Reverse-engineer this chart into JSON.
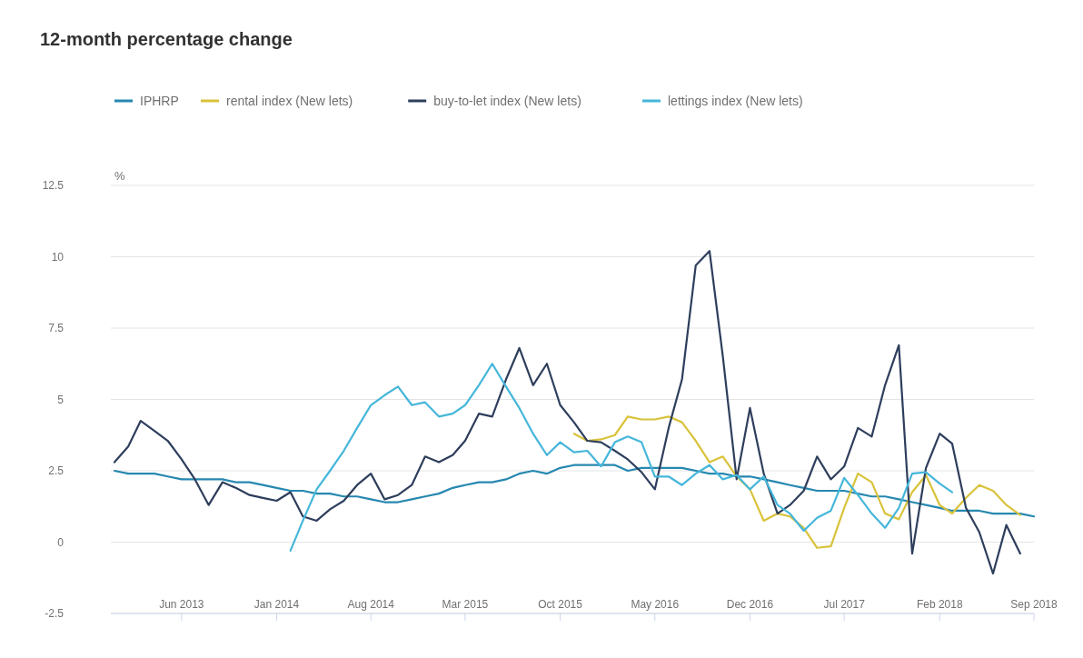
{
  "chart_data": {
    "type": "line",
    "title": "12-month percentage change",
    "ylabel": "%",
    "x": [
      "2013-01",
      "2013-02",
      "2013-03",
      "2013-04",
      "2013-05",
      "2013-06",
      "2013-07",
      "2013-08",
      "2013-09",
      "2013-10",
      "2013-11",
      "2013-12",
      "2014-01",
      "2014-02",
      "2014-03",
      "2014-04",
      "2014-05",
      "2014-06",
      "2014-07",
      "2014-08",
      "2014-09",
      "2014-10",
      "2014-11",
      "2014-12",
      "2015-01",
      "2015-02",
      "2015-03",
      "2015-04",
      "2015-05",
      "2015-06",
      "2015-07",
      "2015-08",
      "2015-09",
      "2015-10",
      "2015-11",
      "2015-12",
      "2016-01",
      "2016-02",
      "2016-03",
      "2016-04",
      "2016-05",
      "2016-06",
      "2016-07",
      "2016-08",
      "2016-09",
      "2016-10",
      "2016-11",
      "2016-12",
      "2017-01",
      "2017-02",
      "2017-03",
      "2017-04",
      "2017-05",
      "2017-06",
      "2017-07",
      "2017-08",
      "2017-09",
      "2017-10",
      "2017-11",
      "2017-12",
      "2018-01",
      "2018-02",
      "2018-03",
      "2018-04",
      "2018-05",
      "2018-06",
      "2018-07",
      "2018-08",
      "2018-09"
    ],
    "series": [
      {
        "name": "IPHRP",
        "color": "#2688b0",
        "values": [
          2.5,
          2.4,
          2.4,
          2.4,
          2.3,
          2.2,
          2.2,
          2.2,
          2.2,
          2.1,
          2.1,
          2.0,
          1.9,
          1.8,
          1.8,
          1.7,
          1.7,
          1.6,
          1.6,
          1.5,
          1.4,
          1.4,
          1.5,
          1.6,
          1.7,
          1.9,
          2.0,
          2.1,
          2.1,
          2.2,
          2.4,
          2.5,
          2.4,
          2.6,
          2.7,
          2.7,
          2.7,
          2.7,
          2.5,
          2.6,
          2.6,
          2.6,
          2.6,
          2.5,
          2.4,
          2.4,
          2.3,
          2.3,
          2.2,
          2.1,
          2.0,
          1.9,
          1.8,
          1.8,
          1.8,
          1.7,
          1.6,
          1.6,
          1.5,
          1.4,
          1.3,
          1.2,
          1.1,
          1.1,
          1.1,
          1.0,
          1.0,
          1.0,
          0.9
        ]
      },
      {
        "name": "rental index (New lets)",
        "color": "#d9c23a",
        "values": [
          null,
          null,
          null,
          null,
          null,
          null,
          null,
          null,
          null,
          null,
          null,
          null,
          null,
          null,
          null,
          null,
          null,
          null,
          null,
          null,
          null,
          null,
          null,
          null,
          null,
          null,
          null,
          null,
          null,
          null,
          null,
          null,
          null,
          null,
          3.8,
          3.55,
          3.6,
          3.75,
          4.4,
          4.3,
          4.3,
          4.4,
          4.2,
          3.55,
          2.8,
          3.0,
          2.3,
          1.85,
          0.75,
          1.0,
          0.9,
          0.5,
          -0.2,
          -0.15,
          1.2,
          2.4,
          2.1,
          1.0,
          0.8,
          1.75,
          2.35,
          1.3,
          1.0,
          1.55,
          2.0,
          1.8,
          1.3,
          0.95,
          null
        ]
      },
      {
        "name": "buy-to-let index (New lets)",
        "color": "#2e3e5c",
        "values": [
          2.8,
          3.35,
          4.25,
          3.9,
          3.55,
          2.9,
          2.2,
          1.3,
          2.1,
          1.9,
          1.65,
          1.55,
          1.45,
          1.75,
          0.9,
          0.75,
          1.15,
          1.45,
          2.0,
          2.4,
          1.5,
          1.65,
          2.0,
          3.0,
          2.8,
          3.05,
          3.55,
          4.5,
          4.4,
          5.7,
          6.8,
          5.5,
          6.25,
          4.8,
          4.2,
          3.55,
          3.5,
          3.2,
          2.9,
          2.45,
          1.85,
          4.0,
          5.7,
          9.7,
          10.2,
          6.5,
          2.2,
          4.7,
          2.4,
          1.0,
          1.3,
          1.8,
          3.0,
          2.2,
          2.65,
          4.0,
          3.7,
          5.5,
          6.9,
          -0.4,
          2.6,
          3.8,
          3.45,
          1.2,
          0.35,
          -1.1,
          0.6,
          -0.4,
          null
        ]
      },
      {
        "name": "lettings index (New lets)",
        "color": "#45b6da",
        "values": [
          null,
          null,
          null,
          null,
          null,
          null,
          null,
          null,
          null,
          null,
          null,
          null,
          null,
          -0.3,
          0.75,
          1.85,
          2.5,
          3.2,
          4.0,
          4.8,
          5.15,
          5.45,
          4.8,
          4.9,
          4.4,
          4.5,
          4.8,
          5.5,
          6.25,
          5.45,
          4.7,
          3.8,
          3.05,
          3.5,
          3.15,
          3.2,
          2.65,
          3.5,
          3.7,
          3.5,
          2.3,
          2.3,
          2.0,
          2.4,
          2.7,
          2.2,
          2.35,
          1.85,
          2.3,
          1.3,
          1.0,
          0.4,
          0.85,
          1.1,
          2.25,
          1.65,
          1.0,
          0.5,
          1.2,
          2.4,
          2.45,
          2.05,
          1.75,
          null,
          null,
          null,
          null,
          null,
          null
        ]
      }
    ],
    "xlim": [
      "2013-01",
      "2018-09"
    ],
    "xticks": [
      {
        "value": "2013-06",
        "label": "Jun 2013"
      },
      {
        "value": "2014-01",
        "label": "Jan 2014"
      },
      {
        "value": "2014-08",
        "label": "Aug 2014"
      },
      {
        "value": "2015-03",
        "label": "Mar 2015"
      },
      {
        "value": "2015-10",
        "label": "Oct 2015"
      },
      {
        "value": "2016-05",
        "label": "May 2016"
      },
      {
        "value": "2016-12",
        "label": "Dec 2016"
      },
      {
        "value": "2017-07",
        "label": "Jul 2017"
      },
      {
        "value": "2018-02",
        "label": "Feb 2018"
      },
      {
        "value": "2018-09",
        "label": "Sep 2018"
      }
    ],
    "ylim": [
      -2.5,
      12.5
    ],
    "yticks": [
      -2.5,
      0,
      2.5,
      5,
      7.5,
      10,
      12.5
    ],
    "grid": "y",
    "legend": "top left",
    "marker": "none",
    "line_style": "solid"
  }
}
